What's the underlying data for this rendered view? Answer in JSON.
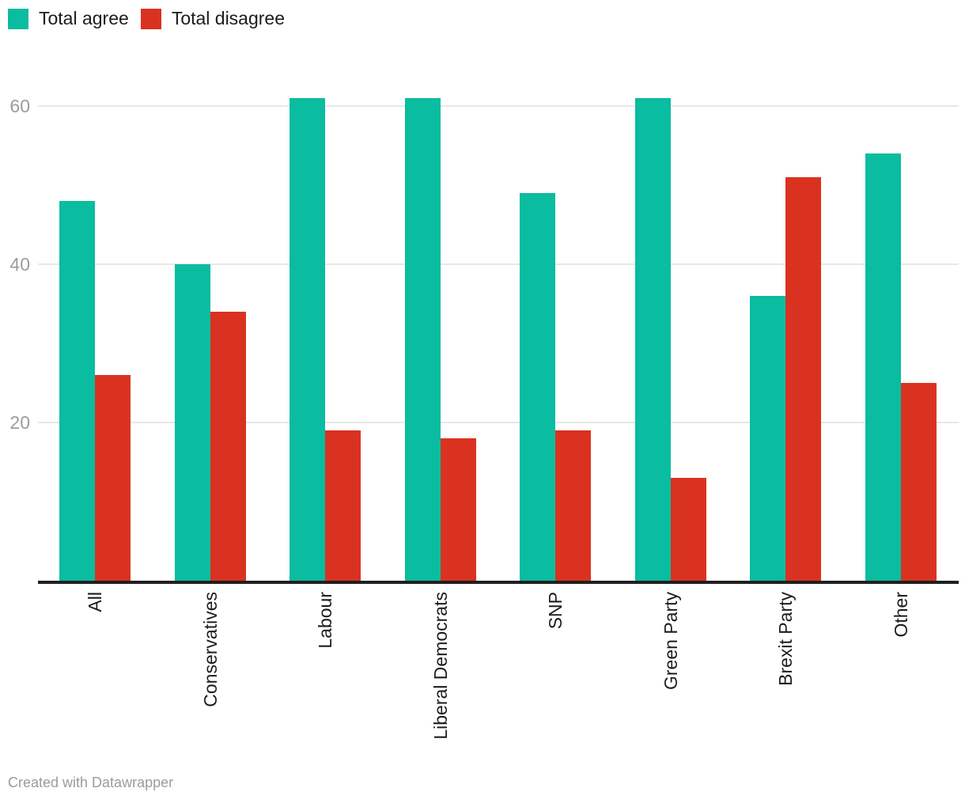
{
  "legend": {
    "items": [
      {
        "label": "Total agree",
        "color": "#0abca0"
      },
      {
        "label": "Total disagree",
        "color": "#da3220"
      }
    ]
  },
  "footer": {
    "text": "Created with Datawrapper"
  },
  "chart_data": {
    "type": "bar",
    "title": "",
    "categories": [
      "All",
      "Conservatives",
      "Labour",
      "Liberal Democrats",
      "SNP",
      "Green Party",
      "Brexit Party",
      "Other"
    ],
    "series": [
      {
        "name": "Total agree",
        "color": "#0abca0",
        "values": [
          48,
          40,
          61,
          61,
          49,
          61,
          36,
          54
        ]
      },
      {
        "name": "Total disagree",
        "color": "#da3220",
        "values": [
          26,
          34,
          19,
          18,
          19,
          13,
          51,
          25
        ]
      }
    ],
    "yticks": [
      20,
      40,
      60
    ],
    "ylim": [
      0,
      65
    ],
    "grid": "horizontal",
    "legend_position": "top-left",
    "axis_colors": {
      "gridline": "#e8e8e8",
      "baseline": "#1f1f1f",
      "tick_text": "#9c9c9c",
      "label_text": "#1c1c1c"
    }
  }
}
